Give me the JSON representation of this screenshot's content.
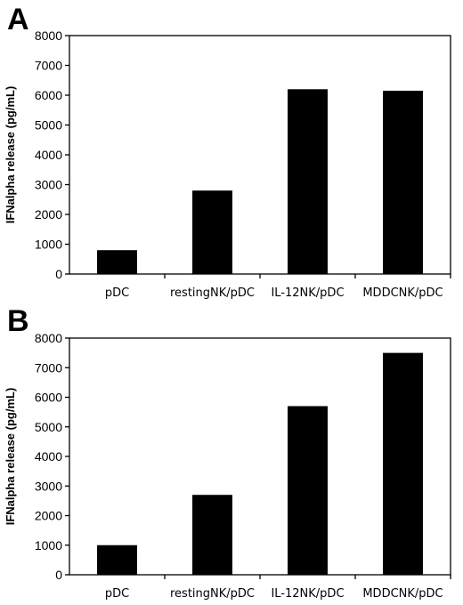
{
  "chart_data": [
    {
      "panel": "A",
      "type": "bar",
      "categories": [
        "pDC",
        "restingNK/pDC",
        "IL-12NK/pDC",
        "MDDCNK/pDC"
      ],
      "values": [
        800,
        2800,
        6200,
        6150
      ],
      "title": "",
      "xlabel": "",
      "ylabel": "IFNalpha release (pg/mL)",
      "ylim": [
        0,
        8000
      ],
      "yticks": [
        0,
        1000,
        2000,
        3000,
        4000,
        5000,
        6000,
        7000,
        8000
      ],
      "grid": false,
      "bar_color": "#000000"
    },
    {
      "panel": "B",
      "type": "bar",
      "categories": [
        "pDC",
        "restingNK/pDC",
        "IL-12NK/pDC",
        "MDDCNK/pDC"
      ],
      "values": [
        1000,
        2700,
        5700,
        7500
      ],
      "title": "",
      "xlabel": "",
      "ylabel": "IFNalpha release (pg/mL)",
      "ylim": [
        0,
        8000
      ],
      "yticks": [
        0,
        1000,
        2000,
        3000,
        4000,
        5000,
        6000,
        7000,
        8000
      ],
      "grid": false,
      "bar_color": "#000000"
    }
  ]
}
